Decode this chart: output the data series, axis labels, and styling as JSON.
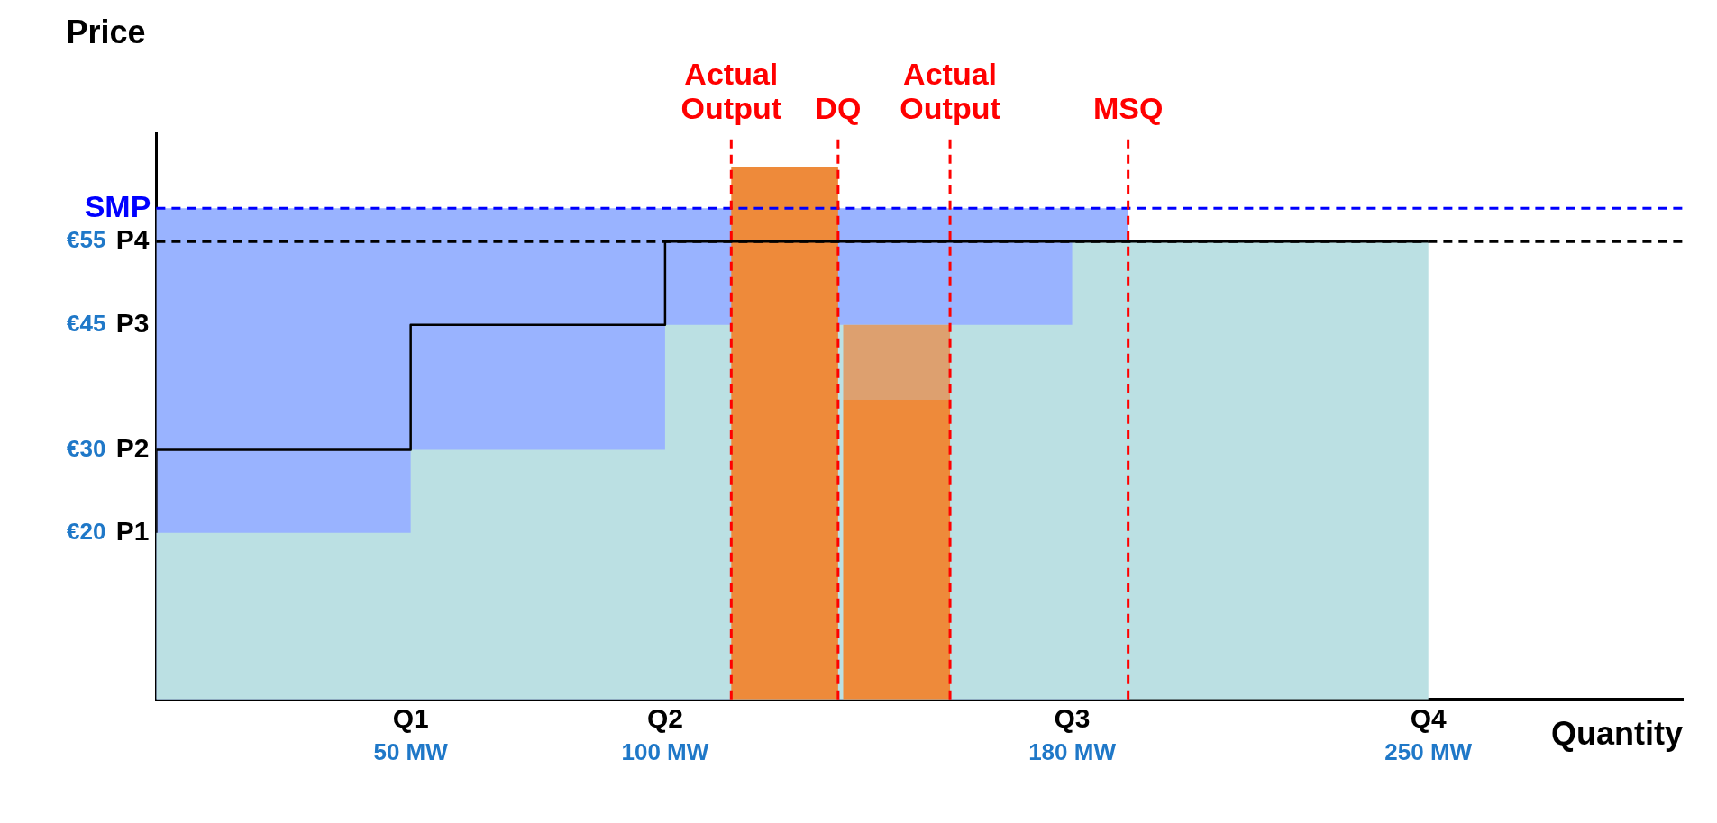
{
  "chart_data": {
    "type": "area",
    "xlabel": "Quantity",
    "ylabel": "Price",
    "xlim": [
      0,
      300
    ],
    "ylim": [
      0,
      68
    ],
    "xticks": [
      {
        "value": 50,
        "label": "50 MW"
      },
      {
        "value": 100,
        "label": "100 MW"
      },
      {
        "value": 180,
        "label": "180 MW"
      },
      {
        "value": 250,
        "label": "250 MW"
      }
    ],
    "yticks": [
      {
        "value": 20,
        "label": "€20"
      },
      {
        "value": 30,
        "label": "€30"
      },
      {
        "value": 45,
        "label": "€45"
      },
      {
        "value": 55,
        "label": "€55"
      }
    ],
    "annotations": [
      {
        "text": "Q1",
        "x": 50,
        "y": 0
      },
      {
        "text": "Q2",
        "x": 100,
        "y": 0
      },
      {
        "text": "Q3",
        "x": 180,
        "y": 0
      },
      {
        "text": "Q4",
        "x": 250,
        "y": 0
      },
      {
        "text": "P1",
        "x": 0,
        "y": 20
      },
      {
        "text": "P2",
        "x": 0,
        "y": 30
      },
      {
        "text": "P3",
        "x": 0,
        "y": 45
      },
      {
        "text": "P4",
        "x": 0,
        "y": 55
      }
    ],
    "grid": false,
    "legend": false,
    "marker": "none",
    "series": [
      {
        "color": "#99b3ff",
        "x": [
          0,
          0,
          191,
          191
        ],
        "values": [
          0,
          59,
          59,
          0
        ]
      },
      {
        "color": "#bbe0e3",
        "x": [
          0,
          0,
          50,
          50,
          100,
          100,
          180,
          180,
          250,
          250
        ],
        "values": [
          0,
          20,
          20,
          30,
          30,
          45,
          45,
          55,
          55,
          0
        ]
      },
      {
        "color": "#dda06f",
        "x": [
          135,
          135,
          156,
          156
        ],
        "values": [
          36,
          45,
          45,
          36
        ]
      },
      {
        "color": "#ee8a3a",
        "x": [
          113,
          113,
          134,
          134
        ],
        "values": [
          0,
          64,
          64,
          0
        ]
      },
      {
        "color": "#ee8a3a",
        "x": [
          135,
          135,
          156,
          156
        ],
        "values": [
          0,
          36,
          36,
          0
        ]
      },
      {
        "type": "step",
        "color": "#000000",
        "x": [
          0,
          50,
          100,
          180,
          250
        ],
        "values": [
          20,
          30,
          45,
          55,
          55
        ]
      }
    ],
    "ref_lines": [
      {
        "axis": "y",
        "value": 59,
        "label": "SMP",
        "color": "#0000ff",
        "line_style": "dashed"
      },
      {
        "axis": "y",
        "value": 55,
        "color": "#000000",
        "line_style": "dashed"
      },
      {
        "axis": "x",
        "value": 113,
        "label": "Actual Output",
        "color": "#ff0000",
        "line_style": "dashed"
      },
      {
        "axis": "x",
        "value": 134,
        "label": "DQ",
        "color": "#ff0000",
        "line_style": "dashed"
      },
      {
        "axis": "x",
        "value": 156,
        "label": "Actual Output",
        "color": "#ff0000",
        "line_style": "dashed"
      },
      {
        "axis": "x",
        "value": 191,
        "label": "MSQ",
        "color": "#ff0000",
        "line_style": "dashed"
      }
    ]
  }
}
